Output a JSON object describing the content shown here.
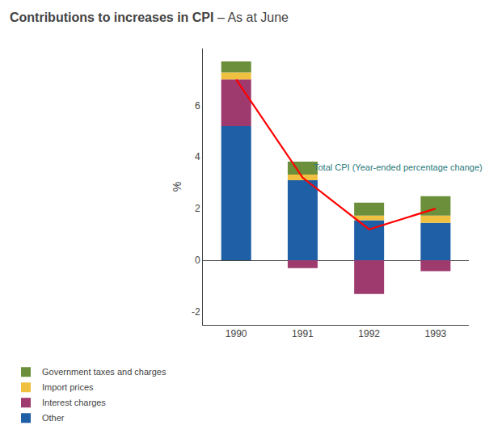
{
  "chart_data": {
    "type": "bar",
    "stacked": true,
    "title": "Contributions to increases in CPI",
    "subtitle": "– As at June",
    "ylabel": "%",
    "categories": [
      "1990",
      "1991",
      "1992",
      "1993"
    ],
    "series": [
      {
        "name": "Other",
        "color": "#1f5fa6",
        "values": [
          5.2,
          3.1,
          1.55,
          1.45
        ]
      },
      {
        "name": "Interest charges",
        "color": "#9e3a6e",
        "values": [
          1.8,
          -0.3,
          -1.3,
          -0.42
        ]
      },
      {
        "name": "Import prices",
        "color": "#f0c040",
        "values": [
          0.28,
          0.22,
          0.18,
          0.28
        ]
      },
      {
        "name": "Government taxes and charges",
        "color": "#6b8f3a",
        "values": [
          0.42,
          0.5,
          0.5,
          0.75
        ]
      },
      {
        "type": "line",
        "color": "red",
        "values": [
          7.0,
          3.2,
          1.2,
          2.0
        ]
      }
    ],
    "annotations": [
      {
        "text": "Total CPI (Year-ended percentage change)",
        "color": "#2a7a7a"
      }
    ],
    "ylim": [
      -2.5,
      8.2
    ],
    "yticks": [
      -2,
      0,
      2,
      4,
      6
    ],
    "grid": false,
    "legend": "bottom"
  }
}
